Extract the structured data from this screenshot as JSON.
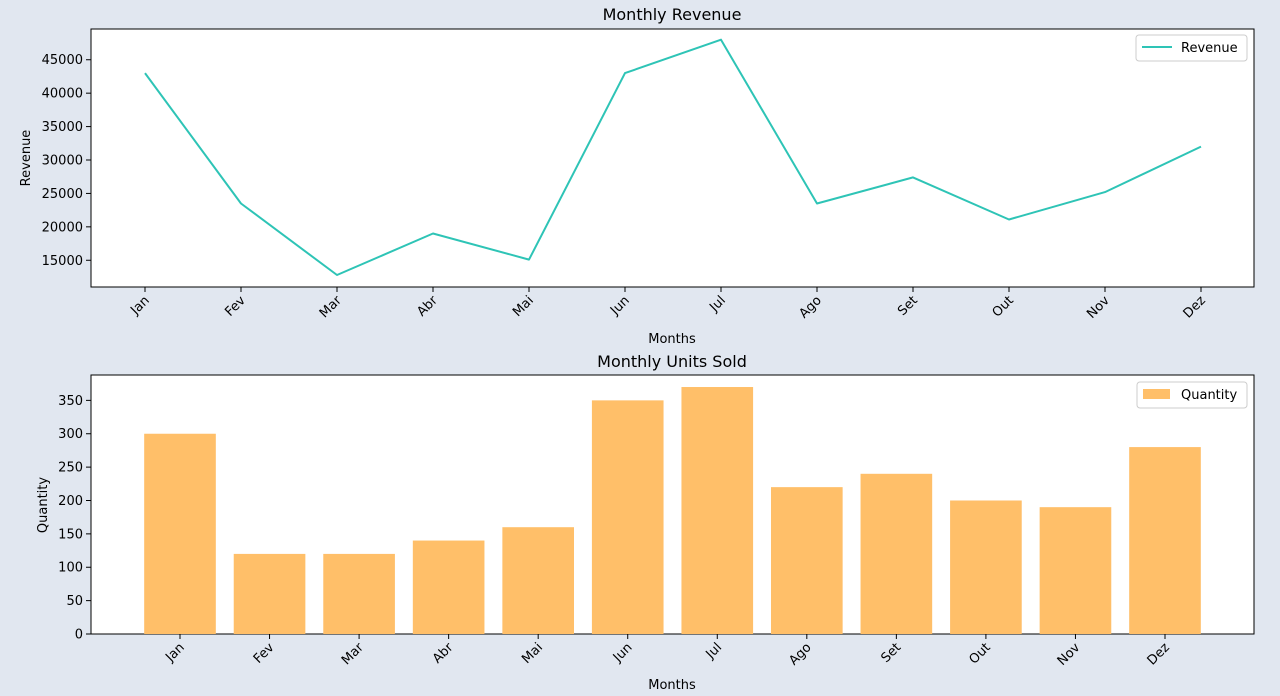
{
  "chart_data": [
    {
      "type": "line",
      "title": "Monthly Revenue",
      "xlabel": "Months",
      "ylabel": "Revenue",
      "categories": [
        "Jan",
        "Fev",
        "Mar",
        "Abr",
        "Mai",
        "Jun",
        "Jul",
        "Ago",
        "Set",
        "Out",
        "Nov",
        "Dez"
      ],
      "series": [
        {
          "name": "Revenue",
          "color": "#2ec4b6",
          "values": [
            43000,
            23500,
            12800,
            19000,
            15100,
            43000,
            48000,
            23500,
            27400,
            21100,
            25200,
            32000
          ]
        }
      ],
      "ylim": [
        11000,
        49600
      ],
      "yticks": [
        15000,
        20000,
        25000,
        30000,
        35000,
        40000,
        45000
      ],
      "legend": "top-right",
      "grid": false
    },
    {
      "type": "bar",
      "title": "Monthly Units Sold",
      "xlabel": "Months",
      "ylabel": "Quantity",
      "categories": [
        "Jan",
        "Fev",
        "Mar",
        "Abr",
        "Mai",
        "Jun",
        "Jul",
        "Ago",
        "Set",
        "Out",
        "Nov",
        "Dez"
      ],
      "series": [
        {
          "name": "Quantity",
          "color": "#ffbf69",
          "values": [
            300,
            120,
            120,
            140,
            160,
            350,
            370,
            220,
            240,
            200,
            190,
            280
          ]
        }
      ],
      "ylim": [
        0,
        388
      ],
      "yticks": [
        0,
        50,
        100,
        150,
        200,
        250,
        300,
        350
      ],
      "legend": "top-right",
      "grid": false
    }
  ]
}
